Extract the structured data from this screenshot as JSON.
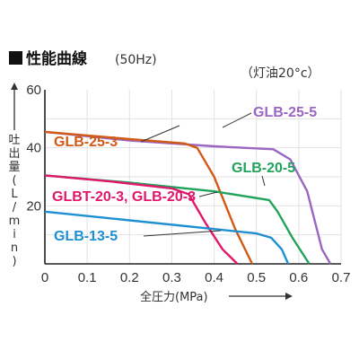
{
  "chart_data": {
    "type": "line",
    "title": "性能曲線",
    "subtitle": "(50Hz)",
    "note": "（灯油20°c）",
    "xlabel": "全圧力(MPa)",
    "ylabel": "吐出量(L/min)",
    "xlim": [
      0,
      0.7
    ],
    "ylim": [
      0,
      60
    ],
    "x_ticks": [
      "0",
      "0.1",
      "0.2",
      "0.3",
      "0.4",
      "0.5",
      "0.6",
      "0.7"
    ],
    "y_ticks": [
      "20",
      "40",
      "60"
    ],
    "grid": true,
    "series": [
      {
        "name": "GLB-25-5",
        "color": "#9a66c2",
        "label_pos": "top-right",
        "points": [
          [
            0,
            45.5
          ],
          [
            0.2,
            42.5
          ],
          [
            0.4,
            40.5
          ],
          [
            0.54,
            39.5
          ],
          [
            0.58,
            36
          ],
          [
            0.62,
            25
          ],
          [
            0.655,
            5
          ],
          [
            0.675,
            0
          ]
        ]
      },
      {
        "name": "GLB-25-3",
        "color": "#d25a16",
        "label_pos": "upper-left",
        "points": [
          [
            0,
            45.5
          ],
          [
            0.2,
            43
          ],
          [
            0.33,
            41.5
          ],
          [
            0.36,
            40
          ],
          [
            0.4,
            30
          ],
          [
            0.45,
            12
          ],
          [
            0.49,
            0
          ]
        ]
      },
      {
        "name": "GLB-20-5",
        "color": "#21a35c",
        "label_pos": "middle-right",
        "points": [
          [
            0,
            30.5
          ],
          [
            0.2,
            28
          ],
          [
            0.4,
            25
          ],
          [
            0.53,
            22
          ],
          [
            0.55,
            18
          ],
          [
            0.585,
            9
          ],
          [
            0.625,
            0
          ]
        ]
      },
      {
        "name": "GLBT-20-3, GLB-20-3",
        "color": "#e0176b",
        "label_pos": "middle-left",
        "points": [
          [
            0,
            30.5
          ],
          [
            0.15,
            28.5
          ],
          [
            0.3,
            26
          ],
          [
            0.34,
            24
          ],
          [
            0.38,
            14
          ],
          [
            0.42,
            5
          ],
          [
            0.455,
            0
          ]
        ]
      },
      {
        "name": "GLB-13-5",
        "color": "#1e8fd2",
        "label_pos": "lower-left",
        "points": [
          [
            0,
            18
          ],
          [
            0.2,
            15
          ],
          [
            0.4,
            12
          ],
          [
            0.5,
            10.5
          ],
          [
            0.535,
            9
          ],
          [
            0.56,
            5
          ],
          [
            0.575,
            0
          ]
        ]
      }
    ]
  }
}
